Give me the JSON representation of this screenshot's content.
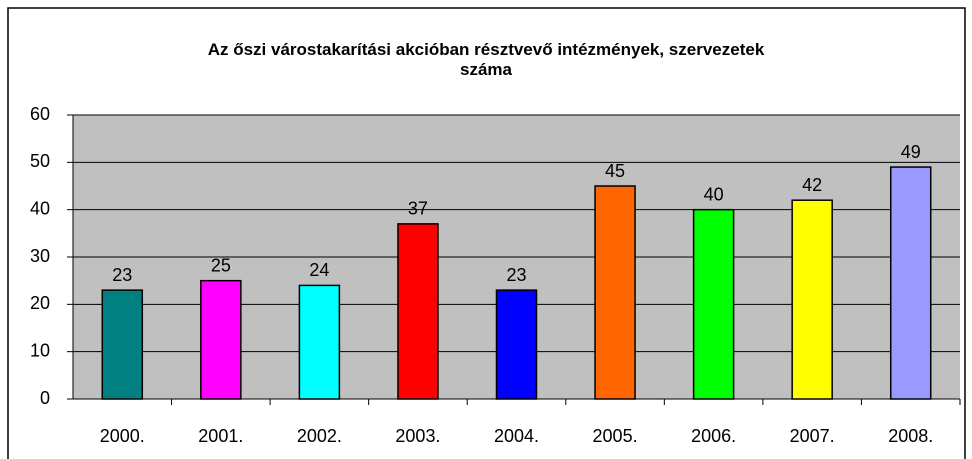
{
  "chart_data": {
    "type": "bar",
    "title": "Az őszi várostakarítási akcióban résztvevő intézmények, szervezetek száma",
    "categories": [
      "2000.",
      "2001.",
      "2002.",
      "2003.",
      "2004.",
      "2005.",
      "2006.",
      "2007.",
      "2008."
    ],
    "values": [
      23,
      25,
      24,
      37,
      23,
      45,
      40,
      42,
      49
    ],
    "colors": [
      "#008080",
      "#ff00ff",
      "#00ffff",
      "#ff0000",
      "#0000ff",
      "#ff6600",
      "#00ff00",
      "#ffff00",
      "#9999ff"
    ],
    "ylim": [
      0,
      60
    ],
    "yticks": [
      0,
      10,
      20,
      30,
      40,
      50,
      60
    ],
    "grid": true
  }
}
